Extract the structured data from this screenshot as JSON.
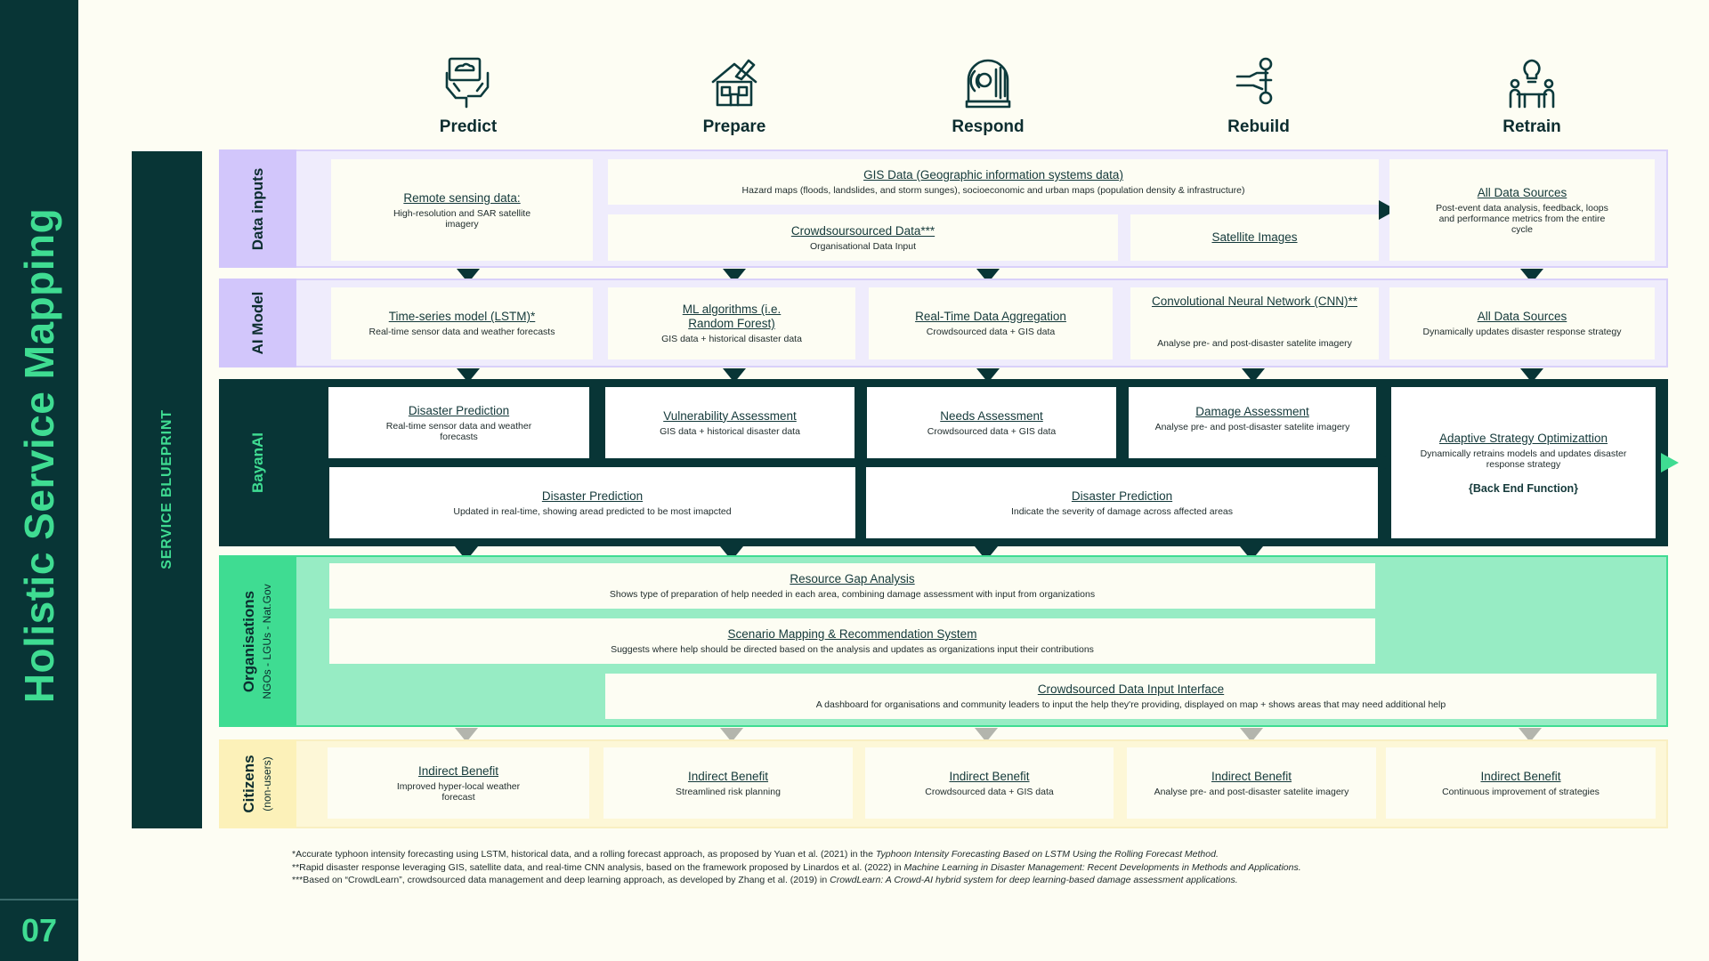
{
  "title": "Holistic Service Mapping",
  "page_number": "07",
  "blueprint_label": "SERVICE BLUEPRINT",
  "colors": {
    "dark_teal": "#083536",
    "accent_green": "#3fdc92",
    "lavender": "#d5c9fb",
    "mint": "#97ecc4",
    "cream": "#fcf5cc"
  },
  "phases": [
    {
      "label": "Predict",
      "icon": "hands-holding-cloud-icon"
    },
    {
      "label": "Prepare",
      "icon": "house-repair-icon"
    },
    {
      "label": "Respond",
      "icon": "radio-tower-icon"
    },
    {
      "label": "Rebuild",
      "icon": "hand-holding-wrench-icon"
    },
    {
      "label": "Retrain",
      "icon": "people-lightbulb-icon"
    }
  ],
  "lanes": {
    "data_inputs": {
      "label": "Data inputs",
      "cards": [
        {
          "title": "Remote sensing data:",
          "subtitle": "High-resolution and SAR satellite imagery"
        },
        {
          "title": "GIS Data (Geographic information systems data)",
          "subtitle": "Hazard maps (floods, landslides, and storm sunges), socioeconomic and urban  maps (population density & infrastructure)"
        },
        {
          "title": "Crowdsoursourced Data***",
          "subtitle": "Organisational Data Input"
        },
        {
          "title": "Satellite Images",
          "subtitle": ""
        },
        {
          "title": "All Data Sources",
          "subtitle": "Post-event data analysis, feedback, loops and performance metrics from the entire cycle"
        }
      ]
    },
    "ai_model": {
      "label": "AI Model",
      "cards": [
        {
          "title": "Time-series model (LSTM)*",
          "subtitle": "Real-time sensor data and weather forecasts"
        },
        {
          "title": "ML algorithms (i.e. Random Forest)",
          "subtitle": "GIS data + historical disaster data"
        },
        {
          "title": "Real-Time Data Aggregation",
          "subtitle": "Crowdsourced data + GIS data"
        },
        {
          "title": "Convolutional Neural Network (CNN)**",
          "subtitle": "Analyse pre- and post-disaster satelite imagery"
        },
        {
          "title": "All Data Sources",
          "subtitle": "Dynamically updates disaster response strategy"
        }
      ]
    },
    "bayanai": {
      "label": "BayanAI",
      "cards": [
        {
          "title": "Disaster Prediction",
          "subtitle": "Real-time sensor data and weather forecasts"
        },
        {
          "title": "Vulnerability Assessment",
          "subtitle": "GIS data + historical disaster data"
        },
        {
          "title": "Needs Assessment",
          "subtitle": "Crowdsourced data + GIS data"
        },
        {
          "title": "Damage Assessment",
          "subtitle": "Analyse pre- and post-disaster satelite imagery"
        },
        {
          "title": "Disaster Prediction",
          "subtitle": "Updated in real-time, showing aread predicted to be most imapcted"
        },
        {
          "title": "Disaster Prediction",
          "subtitle": "Indicate the severity of damage across affected areas"
        },
        {
          "title": "Adaptive Strategy Optimizattion",
          "subtitle": "Dynamically retrains models and updates disaster response strategy",
          "extra": "{Back End Function}"
        }
      ]
    },
    "organisations": {
      "label": "Organisations",
      "sublabel": "NGOs - LGUs - Nat.Gov",
      "cards": [
        {
          "title": "Resource Gap Analysis",
          "subtitle": "Shows type of preparation of help needed in each area, combining damage assessment with input from organizations"
        },
        {
          "title": "Scenario Mapping & Recommendation System",
          "subtitle": "Suggests where help should be directed based on the analysis and updates as organizations input their contributions"
        },
        {
          "title": "Crowdsourced Data Input Interface",
          "subtitle": "A dashboard for organisations and community leaders to input the help they're providing, displayed on map + shows areas that may need additional help"
        }
      ]
    },
    "citizens": {
      "label": "Citizens",
      "sublabel": "(non-users)",
      "cards": [
        {
          "title": "Indirect Benefit",
          "subtitle": "Improved hyper-local weather forecast"
        },
        {
          "title": "Indirect Benefit",
          "subtitle": "Streamlined risk planning"
        },
        {
          "title": "Indirect Benefit",
          "subtitle": "Crowdsourced data + GIS data"
        },
        {
          "title": "Indirect Benefit",
          "subtitle": "Analyse pre- and post-disaster satelite imagery"
        },
        {
          "title": "Indirect Benefit",
          "subtitle": "Continuous improvement of strategies"
        }
      ]
    }
  },
  "footnotes": [
    {
      "text": "*Accurate typhoon intensity forecasting using LSTM, historical data, and a rolling forecast approach, as proposed by Yuan et al. (2021) in the ",
      "em": "Typhoon Intensity Forecasting Based on LSTM Using the Rolling Forecast Method."
    },
    {
      "text": "**Rapid disaster response leveraging GIS, satellite data, and real-time CNN analysis, based on the framework proposed by Linardos et al. (2022) in ",
      "em": "Machine Learning in Disaster Management: Recent Developments in Methods and Applications."
    },
    {
      "text": "***Based on “CrowdLearn”, crowdsourced data management and deep learning approach, as developed by Zhang et al. (2019) in ",
      "em": "CrowdLearn: A Crowd-AI hybrid system for deep learning-based damage assessment applications."
    }
  ]
}
